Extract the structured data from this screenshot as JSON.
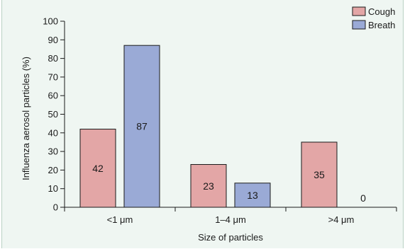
{
  "chart_data": {
    "type": "bar",
    "categories": [
      "<1 μm",
      "1–4 μm",
      ">4 μm"
    ],
    "series": [
      {
        "name": "Cough",
        "values": [
          42,
          23,
          35
        ],
        "color": "#e3a6a6"
      },
      {
        "name": "Breath",
        "values": [
          87,
          13,
          0
        ],
        "color": "#9aaad6"
      }
    ],
    "xlabel": "Size of particles",
    "ylabel": "Influenza aerosol particles (%)",
    "ylim": [
      0,
      100
    ],
    "yticks": [
      0,
      10,
      20,
      30,
      40,
      50,
      60,
      70,
      80,
      90,
      100
    ],
    "legend": "top-right",
    "grid": false
  }
}
